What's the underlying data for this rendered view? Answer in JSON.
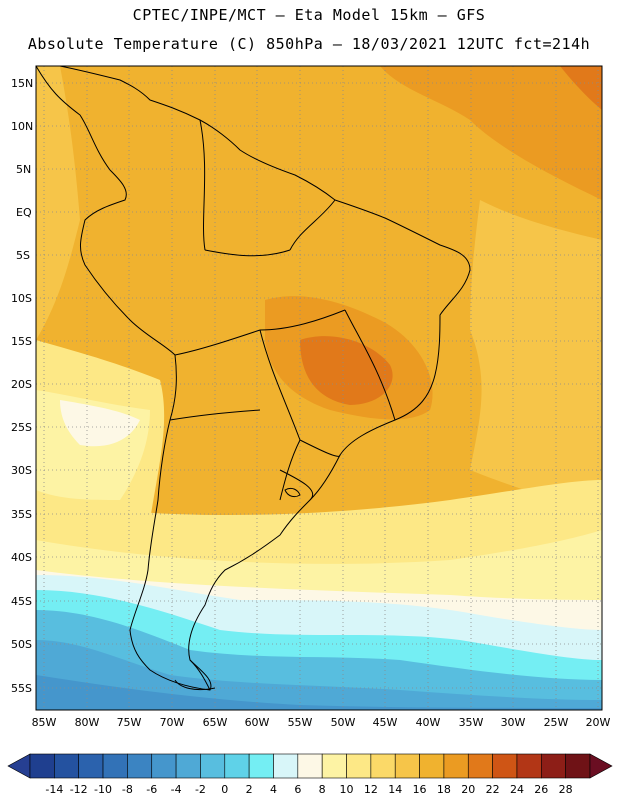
{
  "header": {
    "line1": "CPTEC/INPE/MCT –  Eta Model 15km – GFS",
    "line2": "Absolute Temperature (C) 850hPa – 18/03/2021 12UTC fct=214h"
  },
  "map": {
    "lat_labels": [
      "15N",
      "10N",
      "5N",
      "EQ",
      "5S",
      "10S",
      "15S",
      "20S",
      "25S",
      "30S",
      "35S",
      "40S",
      "45S",
      "50S",
      "55S"
    ],
    "lon_labels": [
      "85W",
      "80W",
      "75W",
      "70W",
      "65W",
      "60W",
      "55W",
      "50W",
      "45W",
      "40W",
      "35W",
      "30W",
      "25W",
      "20W"
    ]
  },
  "colorbar": {
    "ticks": [
      "-14",
      "-12",
      "-10",
      "-8",
      "-6",
      "-4",
      "-2",
      "0",
      "2",
      "4",
      "6",
      "8",
      "10",
      "12",
      "14",
      "16",
      "18",
      "20",
      "22",
      "24",
      "26",
      "28"
    ],
    "colors": [
      "#1f3f8f",
      "#2452a0",
      "#2b62ad",
      "#3272b7",
      "#3b84c2",
      "#4596cc",
      "#4fa9d6",
      "#58bedf",
      "#5fd2e8",
      "#74eef3",
      "#d8f6f9",
      "#fdf8e6",
      "#fdf3a4",
      "#fde886",
      "#fbd968",
      "#f6c549",
      "#f0b22f",
      "#eb9b22",
      "#e1791a",
      "#cf5515",
      "#b23616",
      "#8d1e17",
      "#6f1216"
    ]
  }
}
